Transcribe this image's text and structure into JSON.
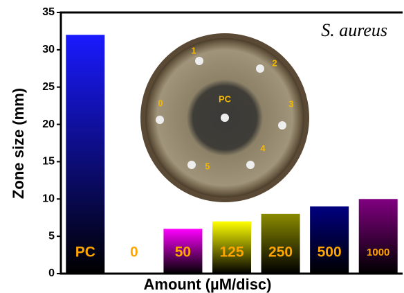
{
  "chart_data": {
    "type": "bar",
    "title": "S. aureus",
    "x_label": "Amount (µM/disc)",
    "y_label": "Zone size (mm)",
    "categories": [
      "PC",
      "0",
      "50",
      "125",
      "250",
      "500",
      "1000"
    ],
    "values": [
      32,
      0,
      6,
      7,
      8,
      9,
      10
    ],
    "colors": [
      "#1a1aff",
      "#000000",
      "#ff00ff",
      "#ffff00",
      "#8a8a00",
      "#000080",
      "#800080"
    ],
    "label_color": "#ffa500",
    "ylim": [
      0,
      35
    ],
    "yticks": [
      0,
      5,
      10,
      15,
      20,
      25,
      30,
      35
    ],
    "inset_labels": [
      "1",
      "2",
      "3",
      "4",
      "5",
      "0",
      "PC"
    ]
  }
}
